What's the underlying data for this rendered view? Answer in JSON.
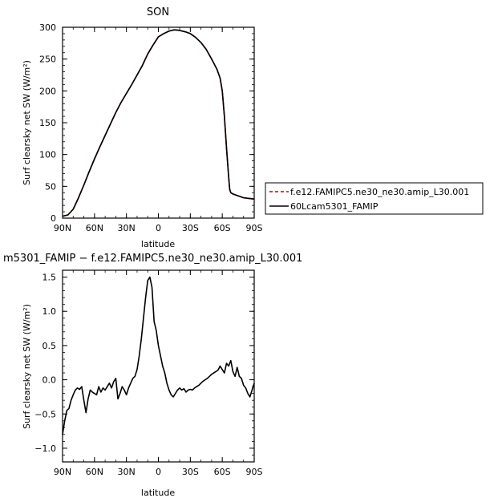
{
  "chart_data": [
    {
      "type": "line",
      "title": "SON",
      "xlabel": "latitude",
      "ylabel": "Surf clearsky net SW (W/m²)",
      "xlim": [
        -90,
        90
      ],
      "ylim": [
        0,
        300
      ],
      "x_ticks": [
        {
          "value": -90,
          "label": "90N"
        },
        {
          "value": -60,
          "label": "60N"
        },
        {
          "value": -30,
          "label": "30N"
        },
        {
          "value": 0,
          "label": "0"
        },
        {
          "value": 30,
          "label": "30S"
        },
        {
          "value": 60,
          "label": "60S"
        },
        {
          "value": 90,
          "label": "90S"
        }
      ],
      "y_ticks": [
        0,
        50,
        100,
        150,
        200,
        250,
        300
      ],
      "legend": {
        "placement": "right",
        "entries": [
          {
            "label": "f.e12.FAMIPC5.ne30_ne30.amip_L30.001",
            "color": "#c00000",
            "dash": "dashed"
          },
          {
            "label": "60Lcam5301_FAMIP",
            "color": "#000000",
            "dash": "solid"
          }
        ]
      },
      "series": [
        {
          "color": "#c00000",
          "x": [
            -90,
            -85,
            -80,
            -75,
            -70,
            -65,
            -60,
            -55,
            -50,
            -45,
            -40,
            -35,
            -30,
            -25,
            -20,
            -15,
            -10,
            -5,
            0,
            5,
            10,
            15,
            20,
            25,
            30,
            35,
            40,
            45,
            50,
            55,
            58,
            60,
            62,
            64,
            66,
            67,
            68,
            70,
            75,
            80,
            85,
            90
          ],
          "y": [
            3,
            5,
            14,
            32,
            52,
            73,
            93,
            112,
            130,
            148,
            166,
            182,
            196,
            210,
            225,
            240,
            258,
            272,
            285,
            290,
            294,
            296,
            295,
            293,
            290,
            284,
            276,
            265,
            250,
            234,
            220,
            200,
            160,
            110,
            65,
            45,
            40,
            38,
            35,
            32,
            31,
            30
          ]
        },
        {
          "color": "#000000",
          "x": [
            -90,
            -85,
            -80,
            -75,
            -70,
            -65,
            -60,
            -55,
            -50,
            -45,
            -40,
            -35,
            -30,
            -25,
            -20,
            -15,
            -10,
            -5,
            0,
            5,
            10,
            15,
            20,
            25,
            30,
            35,
            40,
            45,
            50,
            55,
            58,
            60,
            62,
            64,
            66,
            67,
            68,
            70,
            75,
            80,
            85,
            90
          ],
          "y": [
            3,
            5,
            14,
            32,
            52,
            73,
            93,
            112,
            130,
            148,
            166,
            182,
            196,
            210,
            225,
            240,
            258,
            272,
            285,
            290,
            294,
            296,
            295,
            293,
            290,
            284,
            276,
            265,
            250,
            234,
            220,
            200,
            160,
            110,
            65,
            45,
            40,
            38,
            35,
            32,
            31,
            30
          ]
        }
      ]
    },
    {
      "type": "line",
      "title": "m5301_FAMIP − f.e12.FAMIPC5.ne30_ne30.amip_L30.001",
      "xlabel": "latitude",
      "ylabel": "Surf clearsky net SW (W/m²)",
      "xlim": [
        -90,
        90
      ],
      "ylim": [
        -1.2,
        1.6
      ],
      "x_ticks": [
        {
          "value": -90,
          "label": "90N"
        },
        {
          "value": -60,
          "label": "60N"
        },
        {
          "value": -30,
          "label": "30N"
        },
        {
          "value": 0,
          "label": "0"
        },
        {
          "value": 30,
          "label": "30S"
        },
        {
          "value": 60,
          "label": "60S"
        },
        {
          "value": 90,
          "label": "90S"
        }
      ],
      "y_ticks": [
        {
          "value": 1.5,
          "label": "1.5"
        },
        {
          "value": 1.0,
          "label": "1.0"
        },
        {
          "value": 0.5,
          "label": "0.5"
        },
        {
          "value": 0.0,
          "label": "0.0"
        },
        {
          "value": -0.5,
          "label": "−0.5"
        },
        {
          "value": -1.0,
          "label": "−1.0"
        }
      ],
      "series": [
        {
          "color": "#000000",
          "x": [
            -90,
            -88,
            -86,
            -84,
            -82,
            -80,
            -78,
            -76,
            -74,
            -72,
            -70,
            -68,
            -66,
            -64,
            -62,
            -60,
            -58,
            -56,
            -54,
            -52,
            -50,
            -48,
            -46,
            -44,
            -42,
            -40,
            -38,
            -36,
            -34,
            -32,
            -30,
            -28,
            -26,
            -24,
            -22,
            -20,
            -18,
            -16,
            -14,
            -12,
            -10,
            -8,
            -6,
            -4,
            -2,
            0,
            2,
            4,
            6,
            8,
            10,
            12,
            14,
            16,
            18,
            20,
            22,
            24,
            26,
            28,
            30,
            32,
            34,
            36,
            38,
            40,
            42,
            44,
            46,
            48,
            50,
            52,
            54,
            56,
            58,
            60,
            62,
            64,
            66,
            68,
            70,
            72,
            74,
            76,
            78,
            80,
            82,
            84,
            86,
            88,
            90
          ],
          "y": [
            -0.8,
            -0.6,
            -0.45,
            -0.42,
            -0.3,
            -0.22,
            -0.15,
            -0.12,
            -0.14,
            -0.1,
            -0.3,
            -0.48,
            -0.28,
            -0.15,
            -0.18,
            -0.2,
            -0.22,
            -0.1,
            -0.18,
            -0.12,
            -0.15,
            -0.1,
            -0.05,
            -0.12,
            -0.03,
            0.02,
            -0.28,
            -0.2,
            -0.1,
            -0.15,
            -0.22,
            -0.12,
            -0.05,
            0.02,
            0.05,
            0.15,
            0.35,
            0.6,
            0.9,
            1.2,
            1.45,
            1.5,
            1.35,
            0.85,
            0.72,
            0.5,
            0.35,
            0.2,
            0.1,
            -0.05,
            -0.15,
            -0.22,
            -0.25,
            -0.2,
            -0.15,
            -0.12,
            -0.15,
            -0.13,
            -0.18,
            -0.15,
            -0.14,
            -0.15,
            -0.12,
            -0.1,
            -0.08,
            -0.05,
            -0.02,
            0,
            0.02,
            0.05,
            0.08,
            0.1,
            0.12,
            0.14,
            0.2,
            0.15,
            0.1,
            0.24,
            0.2,
            0.28,
            0.12,
            0.05,
            0.18,
            0.05,
            0.02,
            -0.08,
            -0.12,
            -0.2,
            -0.25,
            -0.15,
            -0.05
          ]
        }
      ]
    }
  ]
}
